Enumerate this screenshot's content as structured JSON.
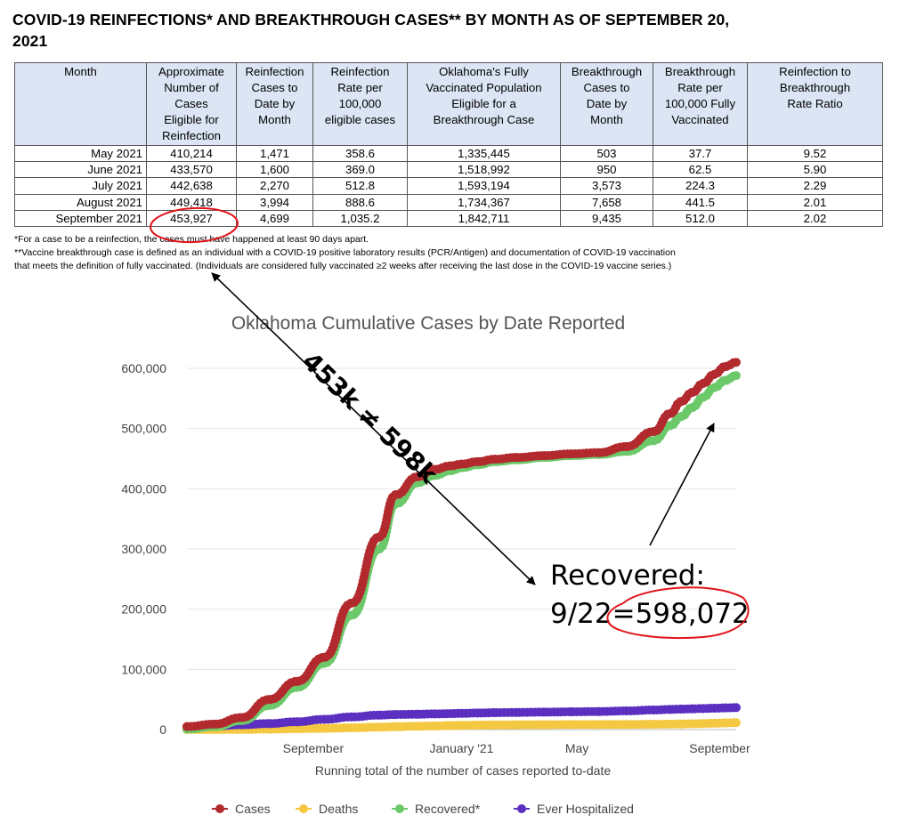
{
  "report": {
    "title_line1": "COVID-19 REINFECTIONS* AND BREAKTHROUGH CASES** BY MONTH AS OF SEPTEMBER 20,",
    "title_line2": "2021",
    "headers": [
      [
        "Month"
      ],
      [
        "Approximate",
        "Number of",
        "Cases",
        "Eligible for",
        "Reinfection"
      ],
      [
        "Reinfection",
        "Cases to",
        "Date by",
        "Month"
      ],
      [
        "Reinfection",
        "Rate per",
        "100,000",
        "eligible cases"
      ],
      [
        "Oklahoma's Fully",
        "Vaccinated Population",
        "Eligible for a",
        "Breakthrough Case"
      ],
      [
        "Breakthrough",
        "Cases to",
        "Date by",
        "Month"
      ],
      [
        "Breakthrough",
        "Rate per",
        "100,000 Fully",
        "Vaccinated"
      ],
      [
        "Reinfection to",
        "Breakthrough",
        "Rate Ratio"
      ]
    ],
    "rows": [
      [
        "May 2021",
        "410,214",
        "1,471",
        "358.6",
        "1,335,445",
        "503",
        "37.7",
        "9.52"
      ],
      [
        "June 2021",
        "433,570",
        "1,600",
        "369.0",
        "1,518,992",
        "950",
        "62.5",
        "5.90"
      ],
      [
        "July 2021",
        "442,638",
        "2,270",
        "512.8",
        "1,593,194",
        "3,573",
        "224.3",
        "2.29"
      ],
      [
        "August 2021",
        "449,418",
        "3,994",
        "888.6",
        "1,734,367",
        "7,658",
        "441.5",
        "2.01"
      ],
      [
        "September 2021",
        "453,927",
        "4,699",
        "1,035.2",
        "1,842,711",
        "9,435",
        "512.0",
        "2.02"
      ]
    ],
    "footnote1": "*For a case to be a reinfection, the cases must have happened at least 90 days apart.",
    "footnote2": "**Vaccine breakthrough case is defined as an individual with a COVID-19 positive laboratory results (PCR/Antigen) and documentation of COVID-19 vaccination",
    "footnote3": "that meets the definition of fully vaccinated.  (Individuals are considered fully vaccinated ≥2 weeks after receiving the last dose in the COVID-19 vaccine series.)"
  },
  "annotations": {
    "comparison": "453k ≠ 598k",
    "recovered_line1": "Recovered:",
    "recovered_line2": "9/22=598,072"
  },
  "colors": {
    "cases": "#b22a2e",
    "deaths": "#f5c842",
    "recovered": "#6cc96a",
    "hospitalized": "#5b2fc0",
    "highlight": "#e0141a",
    "table_header": "#dbe5f3"
  },
  "chart_data": {
    "type": "line",
    "title": "Oklahoma Cumulative Cases by Date Reported",
    "xlabel": "Running total of the number of cases reported to-date",
    "ylabel": "",
    "x_tick_labels": [
      "September",
      "January '21",
      "May",
      "September"
    ],
    "x_tick_positions": [
      0.23,
      0.5,
      0.71,
      0.97
    ],
    "ylim": [
      0,
      600000
    ],
    "y_ticks": [
      0,
      100000,
      200000,
      300000,
      400000,
      500000,
      600000
    ],
    "y_tick_labels": [
      "0",
      "100,000",
      "200,000",
      "300,000",
      "400,000",
      "500,000",
      "600,000"
    ],
    "grid": "horizontal",
    "legend_position": "bottom",
    "x": [
      0,
      0.05,
      0.1,
      0.15,
      0.2,
      0.25,
      0.3,
      0.35,
      0.38,
      0.42,
      0.45,
      0.48,
      0.5,
      0.53,
      0.56,
      0.6,
      0.65,
      0.7,
      0.75,
      0.8,
      0.85,
      0.88,
      0.9,
      0.92,
      0.94,
      0.96,
      0.98,
      1.0
    ],
    "series": [
      {
        "name": "Cases",
        "color": "#b22a2e",
        "values": [
          5000,
          9000,
          20000,
          50000,
          80000,
          120000,
          210000,
          320000,
          390000,
          420000,
          432000,
          438000,
          441000,
          445000,
          449000,
          452000,
          455000,
          458000,
          460000,
          470000,
          495000,
          525000,
          545000,
          560000,
          575000,
          590000,
          603000,
          610000
        ]
      },
      {
        "name": "Deaths",
        "color": "#f5c842",
        "values": [
          0,
          100,
          300,
          800,
          1500,
          2000,
          3000,
          4000,
          4800,
          5600,
          6000,
          6700,
          7000,
          7400,
          7700,
          7900,
          8100,
          8300,
          8400,
          8500,
          8800,
          9000,
          9300,
          9600,
          10000,
          10500,
          11000,
          11500
        ]
      },
      {
        "name": "Recovered*",
        "color": "#6cc96a",
        "values": [
          1000,
          5000,
          15000,
          40000,
          70000,
          110000,
          190000,
          300000,
          375000,
          410000,
          422000,
          430000,
          435000,
          440000,
          445000,
          448000,
          452000,
          455000,
          457000,
          462000,
          480000,
          505000,
          520000,
          535000,
          552000,
          568000,
          580000,
          588000
        ]
      },
      {
        "name": "Ever Hospitalized",
        "color": "#5b2fc0",
        "values": [
          4000,
          6000,
          8000,
          10000,
          13000,
          17000,
          21000,
          24000,
          25000,
          25500,
          26000,
          26500,
          27000,
          27500,
          28000,
          28500,
          29000,
          29500,
          30000,
          31000,
          32500,
          33500,
          34000,
          34500,
          35000,
          35500,
          36000,
          36500
        ]
      }
    ]
  }
}
